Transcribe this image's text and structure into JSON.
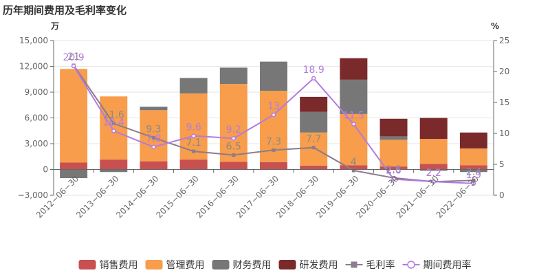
{
  "chart_data": {
    "type": "bar",
    "stacked": true,
    "title": "历年期间费用及毛利率变化",
    "y_left_unit": "万",
    "y_right_unit": "%",
    "y_left_range": [
      -3000,
      15000
    ],
    "y_left_ticks": [
      "15,000",
      "12,000",
      "9,000",
      "6,000",
      "3,000",
      "0",
      "−3,000"
    ],
    "y_right_range": [
      0,
      25
    ],
    "y_right_ticks": [
      "25",
      "20",
      "15",
      "10",
      "5",
      "0"
    ],
    "categories": [
      "2012−06−30",
      "2013−06−30",
      "2014−06−30",
      "2015−06−30",
      "2016−06−30",
      "2017−06−30",
      "2018−06−30",
      "2019−06−30",
      "2020−06−30",
      "2021−06−30",
      "2022−06−30"
    ],
    "bar_series": [
      {
        "name": "销售费用",
        "color": "#c85050",
        "values": [
          800,
          1150,
          950,
          1150,
          900,
          850,
          450,
          500,
          350,
          650,
          500
        ]
      },
      {
        "name": "管理费用",
        "color": "#f79d4b",
        "values": [
          10900,
          7350,
          5950,
          7700,
          9050,
          8300,
          3850,
          5950,
          3100,
          2900,
          1950
        ]
      },
      {
        "name": "财务费用",
        "color": "#777777",
        "values": [
          -1000,
          -300,
          400,
          1800,
          1900,
          3400,
          2400,
          4000,
          400,
          -150,
          -300
        ]
      },
      {
        "name": "研发费用",
        "color": "#7a2a2a",
        "values": [
          0,
          0,
          0,
          0,
          0,
          0,
          1750,
          2500,
          2050,
          2450,
          1850
        ]
      }
    ],
    "line_series": [
      {
        "name": "毛利率",
        "color": "#8c7c8c",
        "marker": "square",
        "values": [
          21.0,
          11.6,
          9.3,
          7.1,
          6.5,
          7.3,
          7.7,
          4.0,
          2.8,
          2.2,
          2.4
        ],
        "labels": [
          "21",
          "11.6",
          "9.3",
          "7.1",
          "6.5",
          "7.3",
          "7.7",
          "4",
          "2.8",
          "2.2",
          "2.4"
        ]
      },
      {
        "name": "期间费用率",
        "color": "#b37be0",
        "marker": "circle",
        "values": [
          20.9,
          10.4,
          7.8,
          9.6,
          9.2,
          13.0,
          18.9,
          11.5,
          2.6,
          2.2,
          1.9
        ],
        "labels": [
          "20.9",
          "10.4",
          "7.8",
          "9.6",
          "9.2",
          "13",
          "18.9",
          "11.5",
          "2.6",
          "2.2",
          "1.9"
        ]
      }
    ],
    "legend_position": "bottom",
    "grid": "horizontal"
  }
}
